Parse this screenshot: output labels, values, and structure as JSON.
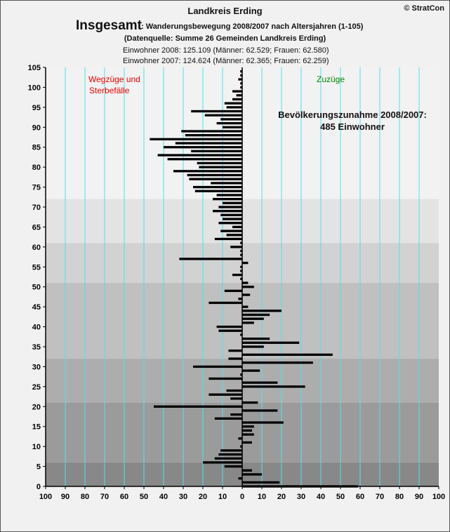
{
  "header": {
    "title": "Landkreis Erding",
    "copyright": "© StratCon",
    "heading_big": "Insgesamt",
    "heading_sub": ": Wanderungsbewegung 2008/2007 nach Altersjahren (1-105)",
    "source": "(Datenquelle: Summe 26 Gemeinden Landkreis Erding)",
    "residents_2008": "Einwohner 2008: 125.109  (Männer: 62.529; Frauen: 62.580)",
    "residents_2007": "Einwohner 2007: 124.624  (Männer: 62.365; Frauen: 62.259)"
  },
  "chart_data": {
    "type": "bar",
    "orientation": "horizontal",
    "xlim": [
      -100,
      100
    ],
    "ylim": [
      0,
      105
    ],
    "x_ticks": [
      "100",
      "90",
      "80",
      "70",
      "60",
      "50",
      "40",
      "30",
      "20",
      "10",
      "0",
      "10",
      "20",
      "30",
      "40",
      "50",
      "60",
      "70",
      "80",
      "90",
      "100"
    ],
    "y_ticks": [
      "0",
      "5",
      "10",
      "15",
      "20",
      "25",
      "30",
      "35",
      "40",
      "45",
      "50",
      "55",
      "60",
      "65",
      "70",
      "75",
      "80",
      "85",
      "90",
      "95",
      "100",
      "105"
    ],
    "label_left": [
      "Wegzüge und",
      "Sterbefälle"
    ],
    "label_right": "Zuzüge",
    "annotation": [
      "Bevölkerungszunahme 2008/2007:",
      "485 Einwohner"
    ],
    "colors": {
      "bar": "#000000",
      "grid": "#48e4f0",
      "label_left": "#ee0000",
      "label_right": "#008a00",
      "bands": [
        "#888888",
        "#9b9b9b",
        "#adadad",
        "#c0c0c0",
        "#d2d2d2",
        "#e3e3e3",
        "#f2f2f2"
      ]
    },
    "bands": [
      {
        "from": 0,
        "to": 6
      },
      {
        "from": 6,
        "to": 21
      },
      {
        "from": 21,
        "to": 32
      },
      {
        "from": 32,
        "to": 51
      },
      {
        "from": 51,
        "to": 61
      },
      {
        "from": 61,
        "to": 72
      },
      {
        "from": 72,
        "to": 88.5
      },
      {
        "from": 88.5,
        "to": 105
      }
    ],
    "ages": [
      0,
      1,
      2,
      3,
      4,
      5,
      6,
      7,
      8,
      9,
      10,
      11,
      12,
      13,
      14,
      15,
      16,
      17,
      18,
      19,
      20,
      21,
      22,
      23,
      24,
      25,
      26,
      27,
      28,
      29,
      30,
      31,
      32,
      33,
      34,
      35,
      36,
      37,
      38,
      39,
      40,
      41,
      42,
      43,
      44,
      45,
      46,
      47,
      48,
      49,
      50,
      51,
      52,
      53,
      54,
      55,
      56,
      57,
      58,
      59,
      60,
      61,
      62,
      63,
      64,
      65,
      66,
      67,
      68,
      69,
      70,
      71,
      72,
      73,
      74,
      75,
      76,
      77,
      78,
      79,
      80,
      81,
      82,
      83,
      84,
      85,
      86,
      87,
      88,
      89,
      90,
      91,
      92,
      93,
      94,
      95,
      96,
      97,
      98,
      99,
      100,
      101,
      102,
      103,
      104
    ],
    "values": [
      59,
      19,
      -2,
      10,
      5,
      -9,
      -20,
      -14,
      -12,
      -11,
      -1,
      5,
      -2,
      6,
      5,
      6,
      21,
      -14,
      -6,
      18,
      -45,
      8,
      -6,
      -17,
      -8,
      32,
      18,
      -17,
      -1,
      9,
      -25,
      36,
      -7,
      46,
      -7,
      11,
      29,
      14,
      -1,
      -12,
      -13,
      6,
      11,
      14,
      20,
      3,
      -17,
      -2,
      4,
      -9,
      6,
      3,
      -1,
      -5,
      -1,
      -1,
      3,
      -32,
      -1,
      -1,
      -6,
      -1,
      -14,
      -8,
      -11,
      -5,
      -12,
      -10,
      -11,
      -15,
      -12,
      -10,
      -15,
      -13,
      -24,
      -25,
      -16,
      -27,
      -28,
      -35,
      -22,
      -23,
      -38,
      -43,
      -26,
      -40,
      -34,
      -47,
      -29,
      -31,
      -10,
      -13,
      -11,
      -19,
      -26,
      -8,
      -9,
      -5,
      -3,
      -5,
      -1,
      -1,
      -2,
      -1,
      -1
    ]
  }
}
